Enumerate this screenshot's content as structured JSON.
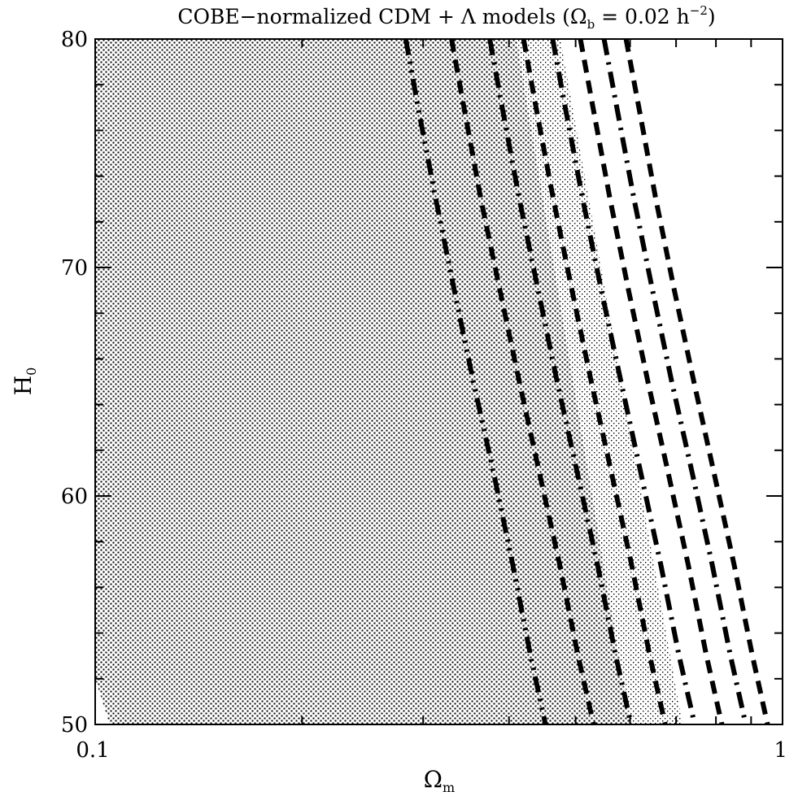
{
  "chart_data": {
    "type": "line",
    "title": "COBE−normalized CDM + Λ models (Ωb = 0.02 h⁻²)",
    "title_parts": {
      "main": "COBE−normalized CDM + Λ models (Ω",
      "sub": "b",
      "mid": " = 0.02 h",
      "sup": "−2",
      "end": ")"
    },
    "xlabel": {
      "main": "Ω",
      "sub": "m"
    },
    "ylabel": {
      "main": "H",
      "sub": "0"
    },
    "x_scale": "log",
    "xlim": [
      0.1,
      1
    ],
    "ylim": [
      50,
      80
    ],
    "x_tick_labels": [
      {
        "value": 0.1,
        "label": "0.1"
      },
      {
        "value": 1,
        "label": "1"
      }
    ],
    "y_tick_labels": [
      {
        "value": 50,
        "label": "50"
      },
      {
        "value": 60,
        "label": "60"
      },
      {
        "value": 70,
        "label": "70"
      },
      {
        "value": 80,
        "label": "80"
      }
    ],
    "y_minor_ticks": [
      52,
      54,
      56,
      58,
      62,
      64,
      66,
      68,
      72,
      74,
      76,
      78
    ],
    "x_minor_ticks": [
      0.2,
      0.3,
      0.4,
      0.5,
      0.6,
      0.7,
      0.8,
      0.9
    ],
    "regions": [
      {
        "style": "dense-stipple",
        "color": "#000000",
        "x_left": [
          0.1,
          0.1,
          0.105
        ],
        "x_left_y": [
          80,
          52,
          50
        ],
        "x_right": [
          0.41,
          0.6
        ],
        "x_right_y": [
          80,
          50
        ]
      },
      {
        "style": "light-stipple",
        "color": "#000000",
        "x_left": [
          0.41,
          0.6
        ],
        "x_right": [
          0.475,
          0.715
        ],
        "y": [
          80,
          50
        ]
      }
    ],
    "series": [
      {
        "style": "dash-dot-dot",
        "x": [
          0.283,
          0.295,
          0.313,
          0.333,
          0.355,
          0.38,
          0.405,
          0.43,
          0.452
        ],
        "y": [
          80,
          77,
          73,
          69,
          65,
          61,
          57,
          53,
          50
        ]
      },
      {
        "style": "dash",
        "x": [
          0.33,
          0.344,
          0.364,
          0.388,
          0.414,
          0.443,
          0.474,
          0.504,
          0.531
        ],
        "y": [
          80,
          77,
          73,
          69,
          65,
          61,
          57,
          53,
          50
        ]
      },
      {
        "style": "dash-dot",
        "x": [
          0.375,
          0.391,
          0.414,
          0.441,
          0.47,
          0.503,
          0.538,
          0.572,
          0.602
        ],
        "y": [
          80,
          77,
          73,
          69,
          65,
          61,
          57,
          53,
          50
        ]
      },
      {
        "style": "dash",
        "x": [
          0.42,
          0.438,
          0.464,
          0.494,
          0.527,
          0.564,
          0.603,
          0.641,
          0.675
        ],
        "y": [
          80,
          77,
          73,
          69,
          65,
          61,
          57,
          53,
          50
        ]
      },
      {
        "style": "dash-dot",
        "x": [
          0.463,
          0.483,
          0.512,
          0.545,
          0.582,
          0.622,
          0.665,
          0.707,
          0.745
        ],
        "y": [
          80,
          77,
          73,
          69,
          65,
          61,
          57,
          53,
          50
        ]
      },
      {
        "style": "dash",
        "x": [
          0.508,
          0.53,
          0.561,
          0.597,
          0.637,
          0.682,
          0.729,
          0.775,
          0.816
        ],
        "y": [
          80,
          77,
          73,
          69,
          65,
          61,
          57,
          53,
          50
        ]
      },
      {
        "style": "dash-dot",
        "x": [
          0.55,
          0.574,
          0.608,
          0.647,
          0.69,
          0.739,
          0.79,
          0.84,
          0.884
        ],
        "y": [
          80,
          77,
          73,
          69,
          65,
          61,
          57,
          53,
          50
        ]
      },
      {
        "style": "dash",
        "x": [
          0.592,
          0.618,
          0.654,
          0.696,
          0.743,
          0.795,
          0.85,
          0.904,
          0.951
        ],
        "y": [
          80,
          77,
          73,
          69,
          65,
          61,
          57,
          53,
          50
        ]
      }
    ]
  }
}
